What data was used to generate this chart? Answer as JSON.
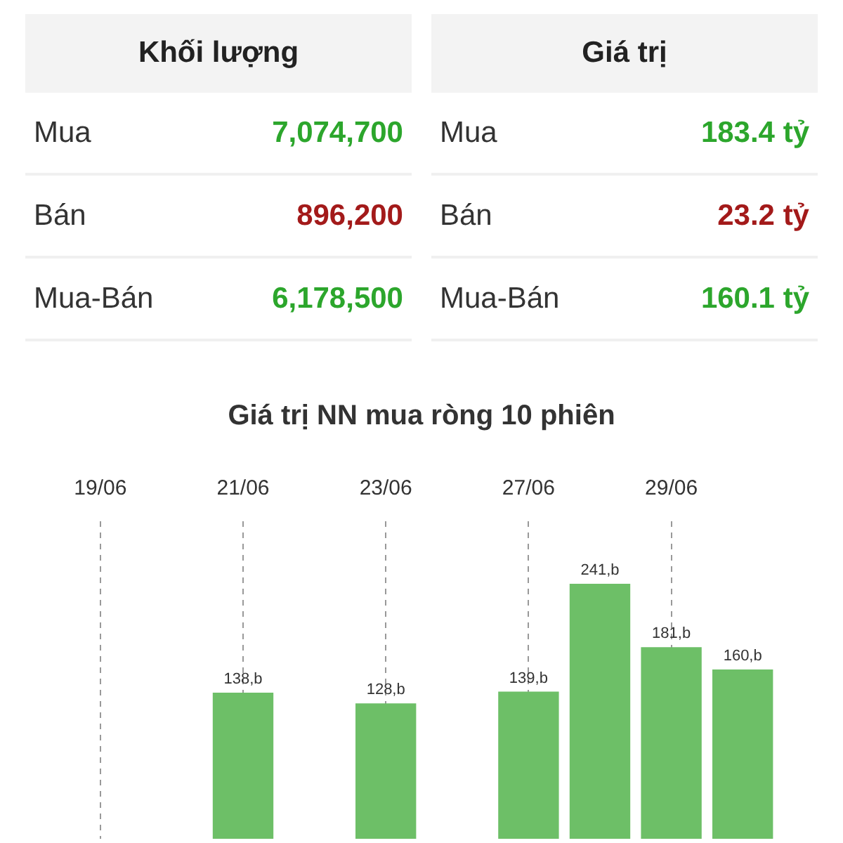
{
  "chart_data": [
    {
      "type": "other",
      "annotations": [
        "Khối lượng",
        "Giá trị",
        "Mua",
        "7,074,700",
        "Mua",
        "183.4 tỷ",
        "Bán",
        "896,200",
        "Bán",
        "23.2 tỷ",
        "Mua-Bán",
        "6,178,500",
        "Mua-Bán",
        "160.1 tỷ"
      ]
    },
    {
      "type": "bar",
      "title": "Giá trị NN mua ròng 10 phiên",
      "categories": [
        "19/06",
        null,
        "21/06",
        null,
        "23/06",
        null,
        "27/06",
        null,
        "29/06",
        null
      ],
      "values": [
        null,
        null,
        138,
        null,
        128,
        null,
        139,
        241,
        181,
        160
      ],
      "value_labels": [
        null,
        null,
        "138,b",
        null,
        "128,b",
        null,
        "139,b",
        "241,b",
        "181,b",
        "160,b"
      ],
      "color": "#6dbf67",
      "grid": "x"
    }
  ]
}
